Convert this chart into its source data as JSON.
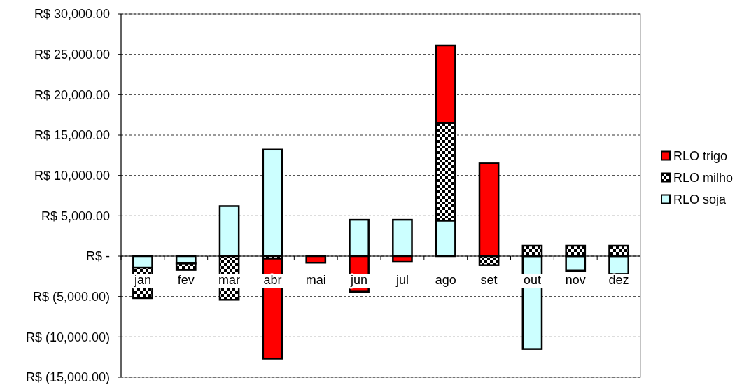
{
  "chart_data": {
    "type": "bar",
    "stacked": true,
    "categories": [
      "jan",
      "fev",
      "mar",
      "abr",
      "mai",
      "jun",
      "jul",
      "ago",
      "set",
      "out",
      "nov",
      "dez"
    ],
    "series": [
      {
        "name": "RLO soja",
        "color": "#ccffff",
        "values": [
          -1400,
          -900,
          6200,
          13200,
          null,
          4500,
          4500,
          4400,
          null,
          -11500,
          -1800,
          -2200
        ]
      },
      {
        "name": "RLO milho",
        "color": "#000000",
        "values": [
          -3800,
          -800,
          -5400,
          -300,
          null,
          null,
          null,
          12100,
          -1100,
          1300,
          1300,
          1300
        ]
      },
      {
        "name": "RLO trigo",
        "color": "#ff0000",
        "values": [
          null,
          null,
          null,
          -12400,
          -800,
          -4400,
          -700,
          9600,
          11500,
          null,
          null,
          null
        ]
      }
    ],
    "ylim": [
      -15000,
      30000
    ],
    "yticks": [
      {
        "value": -15000,
        "label": "R$ (15,000.00)"
      },
      {
        "value": -10000,
        "label": "R$ (10,000.00)"
      },
      {
        "value": -5000,
        "label": "R$ (5,000.00)"
      },
      {
        "value": 0,
        "label": "R$ -"
      },
      {
        "value": 5000,
        "label": "R$ 5,000.00"
      },
      {
        "value": 10000,
        "label": "R$ 10,000.00"
      },
      {
        "value": 15000,
        "label": "R$ 15,000.00"
      },
      {
        "value": 20000,
        "label": "R$ 20,000.00"
      },
      {
        "value": 25000,
        "label": "R$ 25,000.00"
      },
      {
        "value": 30000,
        "label": "R$ 30,000.00"
      }
    ],
    "grid": "y",
    "legend": "right"
  }
}
